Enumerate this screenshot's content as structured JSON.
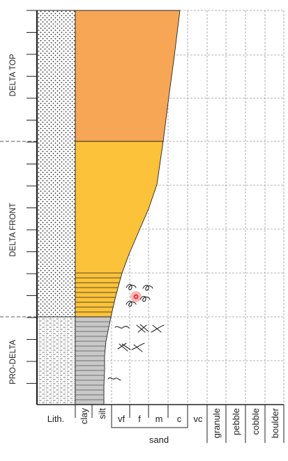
{
  "zones": [
    {
      "label": "DELTA TOP"
    },
    {
      "label": "DELTA FRONT"
    },
    {
      "label": "PRO-DELTA"
    }
  ],
  "columns": {
    "lith_label": "Lith.",
    "grain_sizes": [
      "clay",
      "silt",
      "vf",
      "f",
      "m",
      "c",
      "vc",
      "granule",
      "pebble",
      "cobble",
      "boulder"
    ],
    "sand_label": "sand"
  },
  "colors": {
    "delta_top": "#F7A656",
    "delta_front": "#FCC23A",
    "pro_delta": "#C8C8C8",
    "grid": "#9a9a9a",
    "outline": "#222222",
    "marker": "#e53935"
  },
  "icons": [
    "burrow-icon",
    "cross-bedding-icon",
    "lithology-sand-pattern",
    "lithology-silt-pattern",
    "selection-marker-icon"
  ]
}
